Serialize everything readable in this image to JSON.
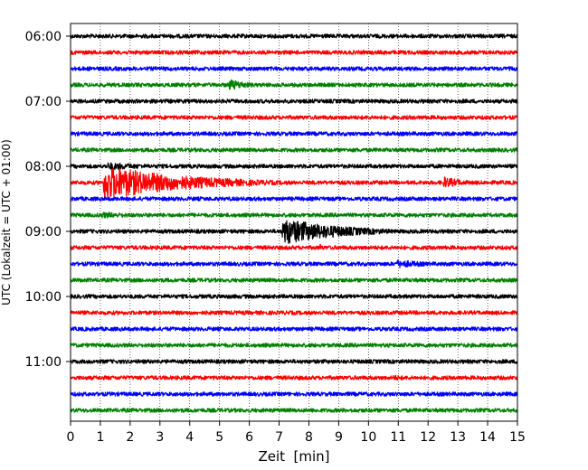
{
  "chart_data": {
    "type": "line",
    "title": "",
    "xlabel": "Zeit  [min]",
    "ylabel": "UTC (Lokalzeit = UTC + 01:00)",
    "xlim": [
      0,
      15
    ],
    "x_ticks": [
      "0",
      "1",
      "2",
      "3",
      "4",
      "5",
      "6",
      "7",
      "8",
      "9",
      "10",
      "11",
      "12",
      "13",
      "14",
      "15"
    ],
    "y_ticks": [
      "06:00",
      "07:00",
      "08:00",
      "09:00",
      "10:00",
      "11:00"
    ],
    "grid": "vertical dotted",
    "colors": [
      "#000000",
      "#ff0000",
      "#0000ff",
      "#008000"
    ],
    "traces": [
      {
        "start": "06:00",
        "events": [
          [
            0.9,
            0.2,
            1.2
          ]
        ]
      },
      {
        "start": "06:15",
        "events": []
      },
      {
        "start": "06:30",
        "events": [
          [
            11.5,
            0.3,
            1.4
          ]
        ]
      },
      {
        "start": "06:45",
        "events": [
          [
            5.3,
            0.8,
            3.0
          ]
        ]
      },
      {
        "start": "07:00",
        "events": []
      },
      {
        "start": "07:15",
        "events": []
      },
      {
        "start": "07:30",
        "events": []
      },
      {
        "start": "07:45",
        "events": []
      },
      {
        "start": "08:00",
        "events": [
          [
            1.2,
            2.0,
            2.0
          ],
          [
            2.9,
            0.4,
            1.5
          ]
        ]
      },
      {
        "start": "08:15",
        "events": [
          [
            1.1,
            2.8,
            9.0
          ],
          [
            8.9,
            0.4,
            1.5
          ],
          [
            12.5,
            0.8,
            3.0
          ]
        ]
      },
      {
        "start": "08:30",
        "events": []
      },
      {
        "start": "08:45",
        "events": [
          [
            1.0,
            1.8,
            1.7
          ]
        ]
      },
      {
        "start": "09:00",
        "events": [
          [
            7.1,
            2.0,
            7.0
          ]
        ]
      },
      {
        "start": "09:15",
        "events": [
          [
            8.35,
            0.1,
            3.0
          ]
        ]
      },
      {
        "start": "09:30",
        "events": [
          [
            10.9,
            1.4,
            2.2
          ]
        ]
      },
      {
        "start": "09:45",
        "events": []
      },
      {
        "start": "10:00",
        "events": []
      },
      {
        "start": "10:15",
        "events": []
      },
      {
        "start": "10:30",
        "events": []
      },
      {
        "start": "10:45",
        "events": []
      },
      {
        "start": "11:00",
        "events": []
      },
      {
        "start": "11:15",
        "events": [
          [
            10.8,
            1.0,
            1.5
          ]
        ]
      },
      {
        "start": "11:30",
        "events": []
      },
      {
        "start": "11:45",
        "events": []
      }
    ]
  }
}
